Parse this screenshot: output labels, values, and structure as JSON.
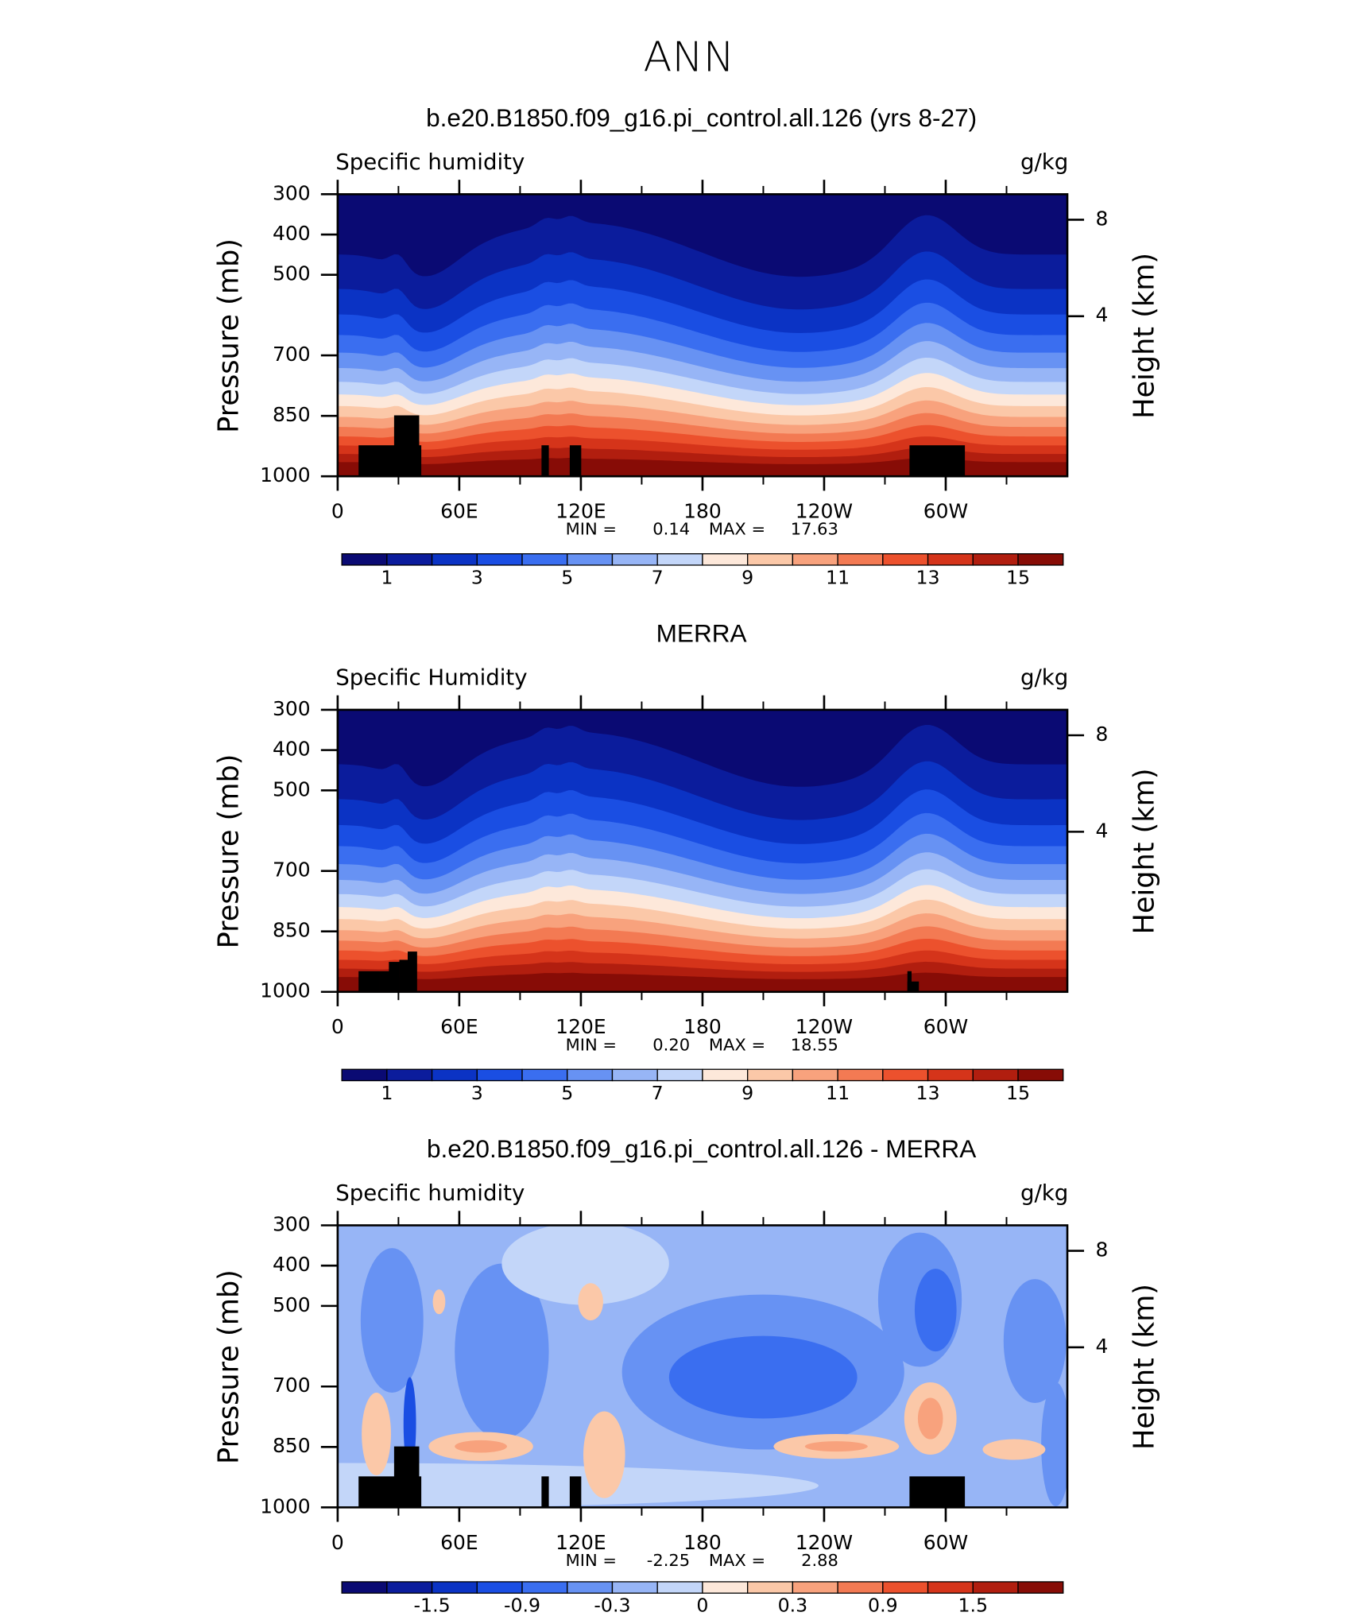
{
  "title": "ANN",
  "chart_data": [
    {
      "type": "contour",
      "title": "b.e20.B1850.f09_g16.pi_control.all.126 (yrs 8-27)",
      "left_string": "Specific humidity",
      "right_string": "g/kg",
      "ylabel": "Pressure (mb)",
      "y2label": "Height (km)",
      "xlim": [
        0,
        360
      ],
      "xticks": [
        0,
        {
          "value": 60,
          "label": "60E"
        },
        {
          "value": 120,
          "label": "120E"
        },
        180,
        {
          "value": 240,
          "label": "120W"
        },
        {
          "value": 300,
          "label": "60W"
        }
      ],
      "xminorticks": [
        30,
        90,
        150,
        210,
        270,
        330
      ],
      "ylim": [
        1000,
        300
      ],
      "yticks": [
        300,
        400,
        500,
        700,
        850,
        1000
      ],
      "y2ticks": [
        4,
        8
      ],
      "min_text": "MIN =",
      "min": 0.14,
      "max_text": "MAX =",
      "max": 17.63,
      "colorbar": {
        "levels": [
          1,
          2,
          3,
          4,
          5,
          6,
          7,
          8,
          9,
          10,
          11,
          12,
          13,
          14,
          15
        ],
        "ticks": [
          1,
          3,
          5,
          7,
          9,
          11,
          13,
          15
        ],
        "colors": [
          "#0a0a73",
          "#0b1c9c",
          "#0b33c4",
          "#1a4ee3",
          "#3a6ef0",
          "#6792f3",
          "#97b5f6",
          "#c3d6f9",
          "#fde8da",
          "#fbc8a8",
          "#f8a27d",
          "#f37a53",
          "#ec512d",
          "#d5341a",
          "#b11e0f",
          "#870c06"
        ]
      }
    },
    {
      "type": "contour",
      "title": "MERRA",
      "left_string": "Specific Humidity",
      "right_string": "g/kg",
      "ylabel": "Pressure (mb)",
      "y2label": "Height (km)",
      "xlim": [
        0,
        360
      ],
      "xticks": [
        0,
        {
          "value": 60,
          "label": "60E"
        },
        {
          "value": 120,
          "label": "120E"
        },
        180,
        {
          "value": 240,
          "label": "120W"
        },
        {
          "value": 300,
          "label": "60W"
        }
      ],
      "xminorticks": [
        30,
        90,
        150,
        210,
        270,
        330
      ],
      "ylim": [
        1000,
        300
      ],
      "yticks": [
        300,
        400,
        500,
        700,
        850,
        1000
      ],
      "y2ticks": [
        4,
        8
      ],
      "min_text": "MIN =",
      "min": {
        "value": 0.2,
        "label": "0.20"
      },
      "max_text": "MAX =",
      "max": 18.55,
      "colorbar": {
        "levels": [
          1,
          2,
          3,
          4,
          5,
          6,
          7,
          8,
          9,
          10,
          11,
          12,
          13,
          14,
          15
        ],
        "ticks": [
          1,
          3,
          5,
          7,
          9,
          11,
          13,
          15
        ],
        "colors": [
          "#0a0a73",
          "#0b1c9c",
          "#0b33c4",
          "#1a4ee3",
          "#3a6ef0",
          "#6792f3",
          "#97b5f6",
          "#c3d6f9",
          "#fde8da",
          "#fbc8a8",
          "#f8a27d",
          "#f37a53",
          "#ec512d",
          "#d5341a",
          "#b11e0f",
          "#870c06"
        ]
      }
    },
    {
      "type": "contour-diff",
      "title": "b.e20.B1850.f09_g16.pi_control.all.126 - MERRA",
      "left_string": "Specific humidity",
      "right_string": "g/kg",
      "ylabel": "Pressure (mb)",
      "y2label": "Height (km)",
      "xlim": [
        0,
        360
      ],
      "xticks": [
        0,
        {
          "value": 60,
          "label": "60E"
        },
        {
          "value": 120,
          "label": "120E"
        },
        180,
        {
          "value": 240,
          "label": "120W"
        },
        {
          "value": 300,
          "label": "60W"
        }
      ],
      "xminorticks": [
        30,
        90,
        150,
        210,
        270,
        330
      ],
      "ylim": [
        1000,
        300
      ],
      "yticks": [
        300,
        400,
        500,
        700,
        850,
        1000
      ],
      "y2ticks": [
        4,
        8
      ],
      "min_text": "MIN =",
      "min": -2.25,
      "max_text": "MAX =",
      "max": 2.88,
      "colorbar": {
        "levels": [
          -1.8,
          -1.5,
          -1.2,
          -0.9,
          -0.6,
          -0.3,
          -0.1,
          0,
          0.1,
          0.3,
          0.6,
          0.9,
          1.2,
          1.5,
          1.8
        ],
        "ticks": [
          -1.5,
          -0.9,
          -0.3,
          0,
          0.3,
          0.9,
          1.5
        ],
        "colors": [
          "#0a0a73",
          "#0b1c9c",
          "#0b33c4",
          "#1a4ee3",
          "#3a6ef0",
          "#6792f3",
          "#97b5f6",
          "#c3d6f9",
          "#fde8da",
          "#fbc8a8",
          "#f8a27d",
          "#f37a53",
          "#ec512d",
          "#d5341a",
          "#b11e0f",
          "#870c06"
        ]
      }
    }
  ]
}
